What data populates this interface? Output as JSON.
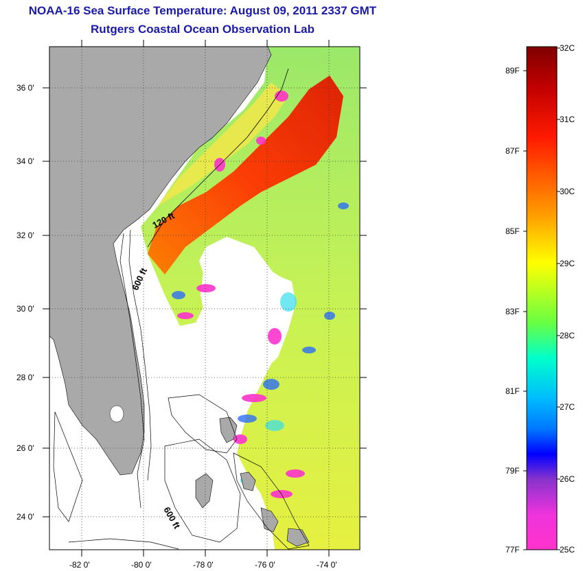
{
  "header": {
    "title": "NOAA-16 Sea Surface Temperature:  August 09, 2011 2337 GMT",
    "subtitle": "Rutgers Coastal Ocean Observation Lab"
  },
  "map": {
    "lat_labels": [
      "36 0'",
      "34 0'",
      "32 0'",
      "30 0'",
      "28 0'",
      "26 0'",
      "24 0'"
    ],
    "lon_labels": [
      "-82 0'",
      "-80 0'",
      "-78 0'",
      "-76 0'",
      "-74 0'"
    ],
    "isobath_labels": [
      "120 ft",
      "600 ft",
      "600 ft"
    ],
    "colors": {
      "land": "#a9a9a9",
      "ocean_background": "#ffffff",
      "grid": "#000000"
    }
  },
  "colorbar": {
    "celsius_labels": [
      "32C",
      "31C",
      "30C",
      "29C",
      "28C",
      "27C",
      "26C",
      "25C"
    ],
    "fahrenheit_labels": [
      "89F",
      "87F",
      "85F",
      "83F",
      "81F",
      "79F",
      "77F"
    ],
    "colors": [
      "#ff33cc",
      "#8833cc",
      "#0000ff",
      "#0099ff",
      "#00ffff",
      "#66ff66",
      "#ffff00",
      "#ff9900",
      "#ff2200",
      "#d00000",
      "#800000"
    ]
  }
}
